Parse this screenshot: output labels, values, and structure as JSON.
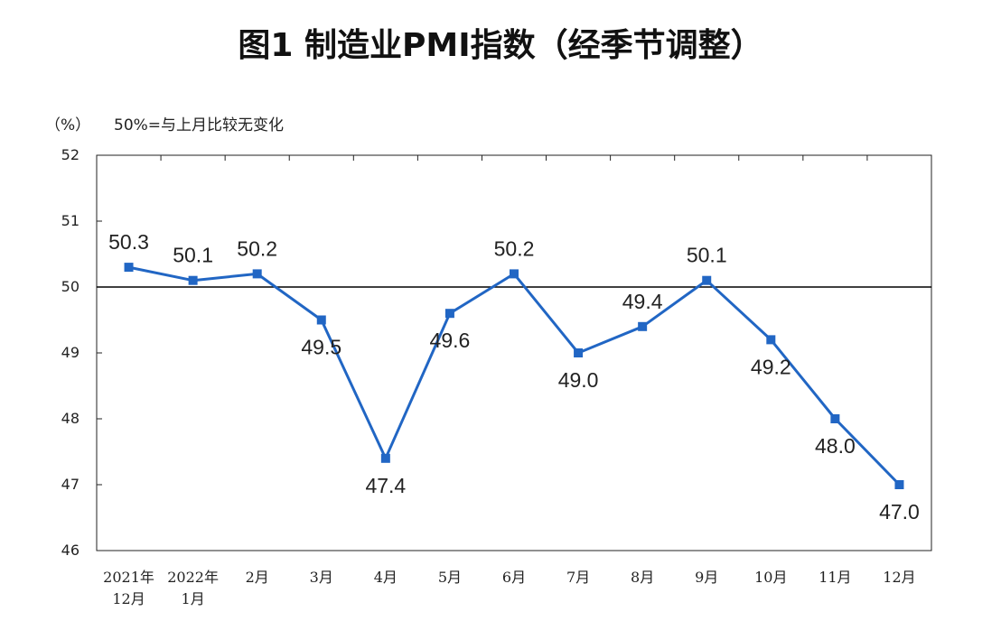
{
  "chart_data": {
    "type": "line",
    "title": "图1  制造业PMI指数（经季节调整）",
    "unit_label": "（%）",
    "note": "50%=与上月比较无变化",
    "reference_line": 50,
    "ylim": [
      46,
      52
    ],
    "yticks": [
      "52",
      "51",
      "50",
      "49",
      "48",
      "47",
      "46"
    ],
    "categories": [
      [
        "2021年",
        "12月"
      ],
      [
        "2022年",
        "1月"
      ],
      [
        "2月"
      ],
      [
        "3月"
      ],
      [
        "4月"
      ],
      [
        "5月"
      ],
      [
        "6月"
      ],
      [
        "7月"
      ],
      [
        "8月"
      ],
      [
        "9月"
      ],
      [
        "10月"
      ],
      [
        "11月"
      ],
      [
        "12月"
      ]
    ],
    "values": [
      50.3,
      50.1,
      50.2,
      49.5,
      47.4,
      49.6,
      50.2,
      49.0,
      49.4,
      50.1,
      49.2,
      48.0,
      47.0
    ],
    "data_labels": [
      "50.3",
      "50.1",
      "50.2",
      "49.5",
      "47.4",
      "49.6",
      "50.2",
      "49.0",
      "49.4",
      "50.1",
      "49.2",
      "48.0",
      "47.0"
    ],
    "label_positions": [
      "above",
      "above",
      "above",
      "below",
      "below",
      "below",
      "above",
      "below",
      "above",
      "above",
      "below",
      "below",
      "below"
    ],
    "series_color": "#2166c4",
    "grid": false
  }
}
